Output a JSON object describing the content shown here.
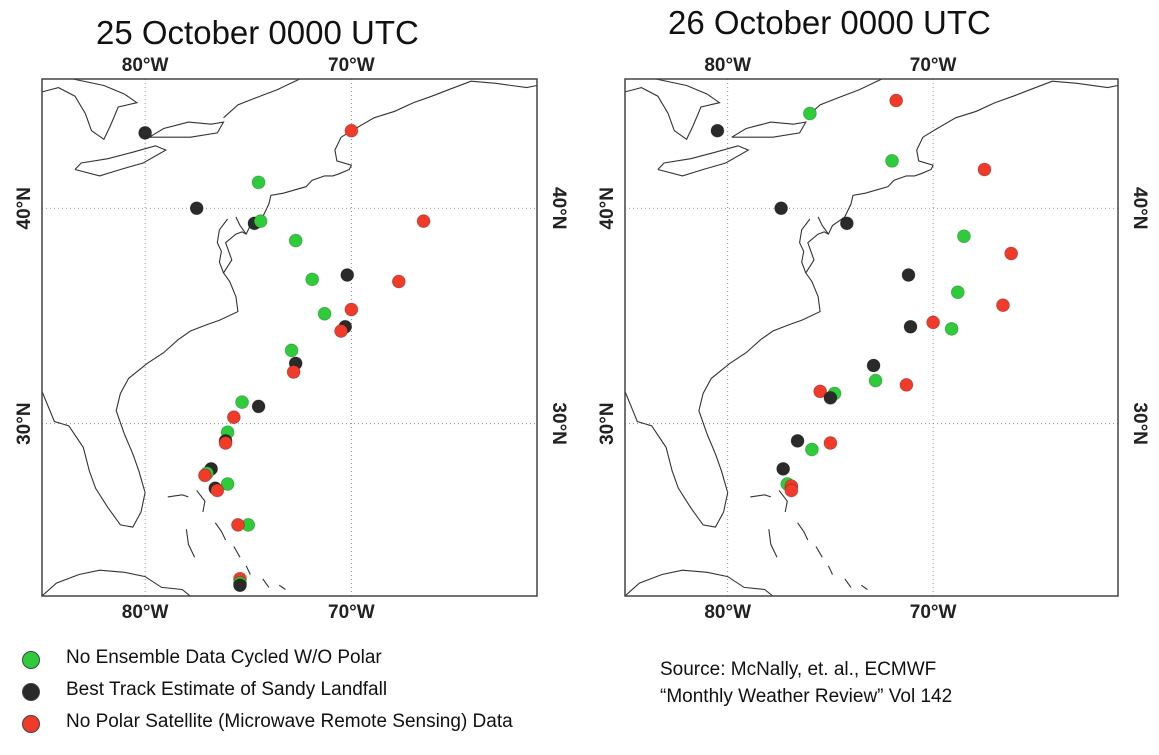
{
  "colors": {
    "ensemble": "#2ecc3a",
    "best_track": "#2a2a2a",
    "no_polar": "#f03a2a"
  },
  "panels": [
    {
      "title": "25 October 0000 UTC",
      "lon_ticks": [
        {
          "value": -80,
          "label": "80°W"
        },
        {
          "value": -70,
          "label": "70°W"
        }
      ],
      "lat_ticks": [
        {
          "value": 30,
          "label": "30°N"
        },
        {
          "value": 40,
          "label": "40°N"
        }
      ],
      "extent": {
        "lon": [
          -85,
          -61
        ],
        "lat": [
          22,
          46
        ]
      },
      "points": [
        {
          "series": "best_track",
          "lon": -80.0,
          "lat": 43.5
        },
        {
          "series": "best_track",
          "lon": -77.5,
          "lat": 40.0
        },
        {
          "series": "ensemble",
          "lon": -74.5,
          "lat": 41.2
        },
        {
          "series": "best_track",
          "lon": -74.7,
          "lat": 39.3
        },
        {
          "series": "ensemble",
          "lon": -74.4,
          "lat": 39.4
        },
        {
          "series": "ensemble",
          "lon": -72.7,
          "lat": 38.5
        },
        {
          "series": "no_polar",
          "lon": -70.0,
          "lat": 43.6
        },
        {
          "series": "no_polar",
          "lon": -66.5,
          "lat": 39.4
        },
        {
          "series": "ensemble",
          "lon": -71.9,
          "lat": 36.7
        },
        {
          "series": "best_track",
          "lon": -70.2,
          "lat": 36.9
        },
        {
          "series": "no_polar",
          "lon": -67.7,
          "lat": 36.6
        },
        {
          "series": "no_polar",
          "lon": -70.0,
          "lat": 35.3
        },
        {
          "series": "ensemble",
          "lon": -71.3,
          "lat": 35.1
        },
        {
          "series": "best_track",
          "lon": -70.3,
          "lat": 34.5
        },
        {
          "series": "no_polar",
          "lon": -70.5,
          "lat": 34.3
        },
        {
          "series": "ensemble",
          "lon": -72.9,
          "lat": 33.4
        },
        {
          "series": "best_track",
          "lon": -72.7,
          "lat": 32.8
        },
        {
          "series": "no_polar",
          "lon": -72.8,
          "lat": 32.4
        },
        {
          "series": "ensemble",
          "lon": -75.3,
          "lat": 31.0
        },
        {
          "series": "best_track",
          "lon": -74.5,
          "lat": 30.8
        },
        {
          "series": "no_polar",
          "lon": -75.7,
          "lat": 30.3
        },
        {
          "series": "ensemble",
          "lon": -76.0,
          "lat": 29.6
        },
        {
          "series": "best_track",
          "lon": -76.1,
          "lat": 29.2
        },
        {
          "series": "no_polar",
          "lon": -76.1,
          "lat": 29.1
        },
        {
          "series": "best_track",
          "lon": -76.8,
          "lat": 27.9
        },
        {
          "series": "ensemble",
          "lon": -77.0,
          "lat": 27.7
        },
        {
          "series": "no_polar",
          "lon": -77.1,
          "lat": 27.6
        },
        {
          "series": "ensemble",
          "lon": -76.0,
          "lat": 27.2
        },
        {
          "series": "best_track",
          "lon": -76.6,
          "lat": 27.0
        },
        {
          "series": "no_polar",
          "lon": -76.5,
          "lat": 26.9
        },
        {
          "series": "ensemble",
          "lon": -75.0,
          "lat": 25.3
        },
        {
          "series": "no_polar",
          "lon": -75.5,
          "lat": 25.3
        },
        {
          "series": "no_polar",
          "lon": -75.4,
          "lat": 22.8
        },
        {
          "series": "ensemble",
          "lon": -75.4,
          "lat": 22.6
        },
        {
          "series": "best_track",
          "lon": -75.4,
          "lat": 22.5
        }
      ]
    },
    {
      "title": "26 October 0000 UTC",
      "lon_ticks": [
        {
          "value": -80,
          "label": "80°W"
        },
        {
          "value": -70,
          "label": "70°W"
        }
      ],
      "lat_ticks": [
        {
          "value": 30,
          "label": "30°N"
        },
        {
          "value": 40,
          "label": "40°N"
        }
      ],
      "extent": {
        "lon": [
          -85,
          -61
        ],
        "lat": [
          22,
          46
        ]
      },
      "points": [
        {
          "series": "best_track",
          "lon": -80.5,
          "lat": 43.6
        },
        {
          "series": "ensemble",
          "lon": -76.0,
          "lat": 44.4
        },
        {
          "series": "no_polar",
          "lon": -71.8,
          "lat": 45.0
        },
        {
          "series": "ensemble",
          "lon": -72.0,
          "lat": 42.2
        },
        {
          "series": "no_polar",
          "lon": -67.5,
          "lat": 41.8
        },
        {
          "series": "best_track",
          "lon": -77.4,
          "lat": 40.0
        },
        {
          "series": "best_track",
          "lon": -74.2,
          "lat": 39.3
        },
        {
          "series": "ensemble",
          "lon": -68.5,
          "lat": 38.7
        },
        {
          "series": "no_polar",
          "lon": -66.2,
          "lat": 37.9
        },
        {
          "series": "best_track",
          "lon": -71.2,
          "lat": 36.9
        },
        {
          "series": "ensemble",
          "lon": -68.8,
          "lat": 36.1
        },
        {
          "series": "no_polar",
          "lon": -66.6,
          "lat": 35.5
        },
        {
          "series": "no_polar",
          "lon": -70.0,
          "lat": 34.7
        },
        {
          "series": "best_track",
          "lon": -71.1,
          "lat": 34.5
        },
        {
          "series": "ensemble",
          "lon": -69.1,
          "lat": 34.4
        },
        {
          "series": "best_track",
          "lon": -72.9,
          "lat": 32.7
        },
        {
          "series": "ensemble",
          "lon": -72.8,
          "lat": 32.0
        },
        {
          "series": "no_polar",
          "lon": -71.3,
          "lat": 31.8
        },
        {
          "series": "no_polar",
          "lon": -75.5,
          "lat": 31.5
        },
        {
          "series": "ensemble",
          "lon": -74.8,
          "lat": 31.4
        },
        {
          "series": "best_track",
          "lon": -75.0,
          "lat": 31.2
        },
        {
          "series": "best_track",
          "lon": -76.6,
          "lat": 29.2
        },
        {
          "series": "ensemble",
          "lon": -75.9,
          "lat": 28.8
        },
        {
          "series": "no_polar",
          "lon": -75.0,
          "lat": 29.1
        },
        {
          "series": "best_track",
          "lon": -77.3,
          "lat": 27.9
        },
        {
          "series": "ensemble",
          "lon": -77.1,
          "lat": 27.2
        },
        {
          "series": "no_polar",
          "lon": -76.9,
          "lat": 27.1
        },
        {
          "series": "no_polar",
          "lon": -76.9,
          "lat": 26.9
        }
      ]
    }
  ],
  "legend": [
    {
      "series": "ensemble",
      "label": "No Ensemble Data Cycled W/O Polar"
    },
    {
      "series": "best_track",
      "label": "Best Track Estimate of Sandy Landfall"
    },
    {
      "series": "no_polar",
      "label": "No Polar Satellite (Microwave Remote Sensing) Data"
    }
  ],
  "source": {
    "line1": "Source: McNally, et. al., ECMWF",
    "line2": "“Monthly Weather Review” Vol 142"
  }
}
